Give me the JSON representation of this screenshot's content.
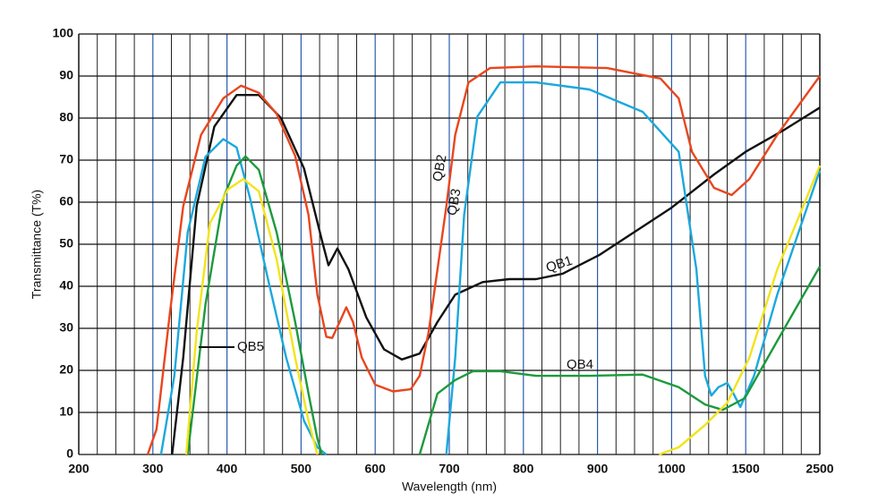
{
  "chart_data": {
    "type": "line",
    "x_label": "Wavelength (nm)",
    "y_label": "Transmittance (T%)",
    "xlim": [
      200,
      2500
    ],
    "xticks": [
      200,
      300,
      400,
      500,
      600,
      700,
      800,
      900,
      1000,
      1500,
      2500
    ],
    "ylim": [
      0,
      100
    ],
    "yticks": [
      0,
      10,
      20,
      30,
      40,
      50,
      60,
      70,
      80,
      90,
      100
    ],
    "grid": true,
    "major_grid_color": "#2a5db0",
    "series": [
      {
        "name": "QB1",
        "color": "#111111",
        "x": [
          326,
          341,
          359,
          383,
          413,
          443,
          473,
          504,
          528,
          537,
          549,
          564,
          588,
          612,
          636,
          660,
          684,
          708,
          745,
          781,
          817,
          853,
          902,
          949,
          1000,
          1286,
          1500,
          2000,
          2500
        ],
        "values": [
          0,
          23,
          59,
          78,
          85.5,
          85.5,
          80,
          68,
          51,
          45,
          49,
          44,
          32.6,
          25,
          22.6,
          24,
          31.5,
          38,
          41,
          41.7,
          41.7,
          43,
          47.4,
          52.8,
          58.7,
          66.6,
          72,
          77,
          82.5
        ]
      },
      {
        "name": "QB2",
        "color": "#e8461e",
        "x": [
          293,
          305,
          323,
          341,
          365,
          395,
          419,
          443,
          467,
          492,
          510,
          522,
          534,
          542,
          552,
          561,
          570,
          582,
          600,
          624,
          648,
          660,
          672,
          684,
          696,
          708,
          726,
          755,
          817,
          913,
          985,
          1048,
          1137,
          1286,
          1405,
          1550,
          1925,
          2500
        ],
        "values": [
          0,
          6,
          33.6,
          59,
          76,
          84.7,
          87.7,
          86,
          81,
          71,
          57,
          38,
          28,
          27.7,
          31.5,
          35,
          31.5,
          23,
          16.6,
          15,
          15.5,
          18.7,
          29,
          44,
          59,
          76,
          88.5,
          91.9,
          92.3,
          91.9,
          89.4,
          84.7,
          72,
          63.4,
          61.7,
          65.5,
          76,
          90
        ]
      },
      {
        "name": "QB3",
        "color": "#1ba8dd",
        "x": [
          311,
          329,
          347,
          371,
          395,
          413,
          431,
          455,
          480,
          504,
          522,
          534,
          null,
          696,
          708,
          720,
          738,
          769,
          817,
          889,
          961,
          1048,
          1167,
          1226,
          1268,
          1316,
          1375,
          1417,
          1464,
          1612,
          1925,
          2500
        ],
        "values": [
          0,
          18.7,
          52.8,
          70.8,
          75,
          73,
          61,
          42,
          23,
          8,
          1.7,
          0,
          null,
          0,
          23,
          57,
          80.4,
          88.5,
          88.5,
          86.8,
          81.5,
          72,
          44,
          18.7,
          14,
          16,
          17,
          14.5,
          11.3,
          18.7,
          38,
          67.6
        ]
      },
      {
        "name": "QB4",
        "color": "#1c9a3c",
        "x": [
          347,
          371,
          395,
          413,
          425,
          443,
          467,
          492,
          510,
          522,
          528,
          null,
          660,
          684,
          708,
          732,
          769,
          817,
          889,
          961,
          1048,
          1226,
          1345,
          1494,
          1925,
          2500
        ],
        "values": [
          0,
          35.7,
          61,
          68.7,
          70.9,
          67.7,
          52.8,
          31.5,
          14.5,
          3.8,
          0,
          null,
          0,
          14.5,
          17.7,
          19.8,
          19.8,
          18.7,
          18.7,
          19,
          16,
          11.9,
          10.6,
          13.4,
          27,
          44.7
        ]
      },
      {
        "name": "QB5",
        "color": "#f2e41a",
        "x": [
          345,
          359,
          377,
          401,
          422,
          443,
          467,
          492,
          510,
          522,
          null,
          983,
          1048,
          1226,
          1375,
          1550,
          1925,
          2500
        ],
        "values": [
          0,
          29,
          55,
          63,
          65.5,
          62.6,
          46.4,
          23,
          8,
          0,
          null,
          0,
          1.7,
          7,
          12.3,
          23,
          44,
          68.7
        ]
      }
    ]
  }
}
